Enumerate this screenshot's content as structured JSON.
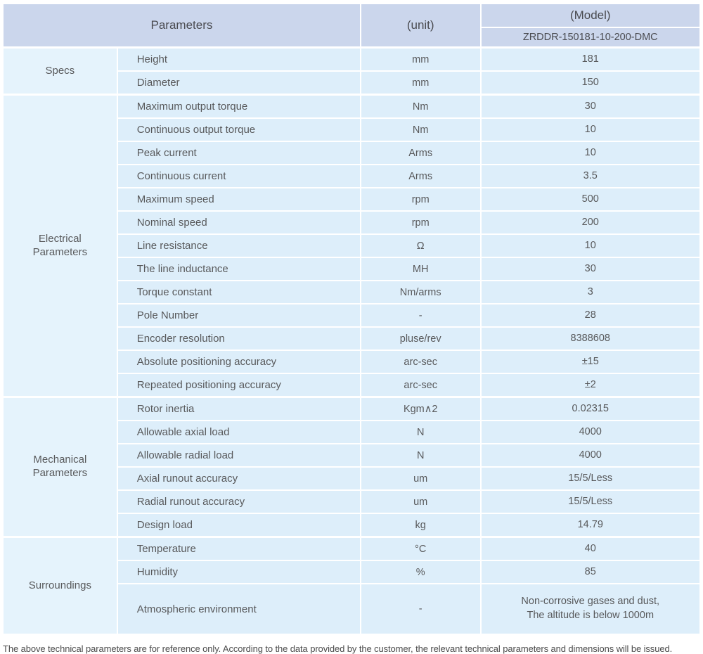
{
  "header": {
    "parameters_label": "Parameters",
    "unit_label": "(unit)",
    "model_label": "(Model)",
    "model_value": "ZRDDR-150181-10-200-DMC"
  },
  "sections": [
    {
      "name": "Specs",
      "rows": [
        {
          "label": "Height",
          "unit": "mm",
          "value": "181"
        },
        {
          "label": "Diameter",
          "unit": "mm",
          "value": "150"
        }
      ]
    },
    {
      "name": "Electrical\nParameters",
      "rows": [
        {
          "label": "Maximum output torque",
          "unit": "Nm",
          "value": "30"
        },
        {
          "label": "Continuous output torque",
          "unit": "Nm",
          "value": "10"
        },
        {
          "label": "Peak current",
          "unit": "Arms",
          "value": "10"
        },
        {
          "label": "Continuous current",
          "unit": "Arms",
          "value": "3.5"
        },
        {
          "label": "Maximum speed",
          "unit": "rpm",
          "value": "500"
        },
        {
          "label": "Nominal speed",
          "unit": "rpm",
          "value": "200"
        },
        {
          "label": "Line resistance",
          "unit": "Ω",
          "value": "10"
        },
        {
          "label": "The line inductance",
          "unit": "MH",
          "value": "30"
        },
        {
          "label": "Torque constant",
          "unit": "Nm/arms",
          "value": "3"
        },
        {
          "label": "Pole Number",
          "unit": "-",
          "value": "28"
        },
        {
          "label": "Encoder resolution",
          "unit": "pluse/rev",
          "value": "8388608"
        },
        {
          "label": "Absolute positioning accuracy",
          "unit": "arc-sec",
          "value": "±15"
        },
        {
          "label": "Repeated positioning accuracy",
          "unit": "arc-sec",
          "value": "±2"
        }
      ]
    },
    {
      "name": "Mechanical\nParameters",
      "rows": [
        {
          "label": "Rotor inertia",
          "unit": "Kgm∧2",
          "value": "0.02315"
        },
        {
          "label": "Allowable axial load",
          "unit": "N",
          "value": "4000"
        },
        {
          "label": "Allowable radial load",
          "unit": "N",
          "value": "4000"
        },
        {
          "label": "Axial runout accuracy",
          "unit": "um",
          "value": "15/5/Less"
        },
        {
          "label": "Radial runout accuracy",
          "unit": "um",
          "value": "15/5/Less"
        },
        {
          "label": "Design load",
          "unit": "kg",
          "value": "14.79"
        }
      ]
    },
    {
      "name": "Surroundings",
      "rows": [
        {
          "label": "Temperature",
          "unit": "°C",
          "value": "40"
        },
        {
          "label": "Humidity",
          "unit": "%",
          "value": "85"
        },
        {
          "label": "Atmospheric environment",
          "unit": "-",
          "value": "Non-corrosive gases and dust,\nThe altitude is below 1000m"
        }
      ]
    }
  ],
  "footer": {
    "note": "The above technical parameters are for reference only. According to the data provided by the customer, the relevant technical parameters and dimensions will be issued."
  },
  "colors": {
    "header_bg": "#cbd6ec",
    "row_bg": "#ddeefa",
    "section_bg": "#e5f3fc",
    "border": "#ffffff",
    "text": "#58595b"
  }
}
